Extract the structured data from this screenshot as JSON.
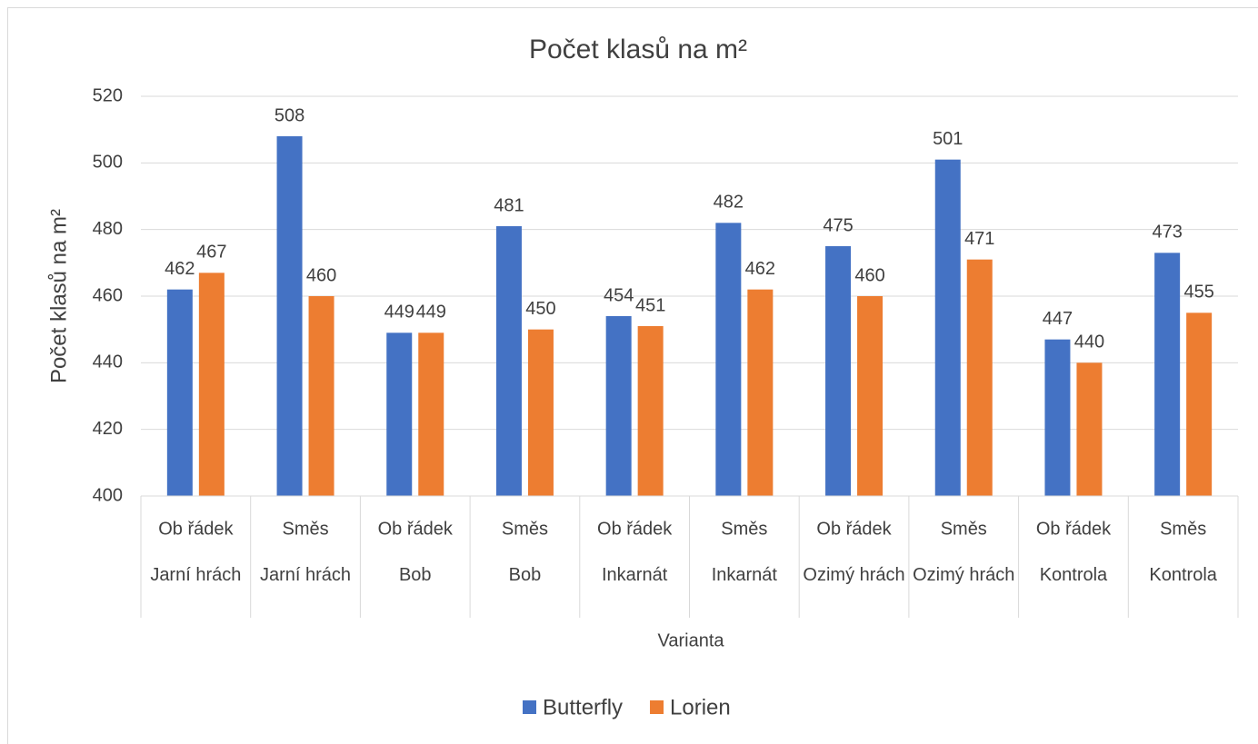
{
  "chart_data": {
    "type": "bar",
    "title": "Počet klasů na m²",
    "x_label": "Varianta",
    "y_label": "Počet klasů na m²",
    "categories": [
      "Ob řádek",
      "Směs",
      "Ob řádek",
      "Směs",
      "Ob řádek",
      "Směs",
      "Ob řádek",
      "Směs",
      "Ob řádek",
      "Směs"
    ],
    "category_groups": [
      "Jarní hrách",
      "Jarní hrách",
      "Bob",
      "Bob",
      "Inkarnát",
      "Inkarnát",
      "Ozimý hrách",
      "Ozimý hrách",
      "Kontrola",
      "Kontrola"
    ],
    "series": [
      {
        "name": "Butterfly",
        "color": "#4472c4",
        "values": [
          462,
          508,
          449,
          481,
          454,
          482,
          475,
          501,
          447,
          473
        ]
      },
      {
        "name": "Lorien",
        "color": "#ed7d31",
        "values": [
          467,
          460,
          449,
          450,
          451,
          462,
          460,
          471,
          440,
          455
        ]
      }
    ],
    "ylim": [
      400,
      520
    ],
    "yticks": [
      400,
      420,
      440,
      460,
      480,
      500,
      520
    ],
    "grid": true,
    "legend": "bottom"
  }
}
